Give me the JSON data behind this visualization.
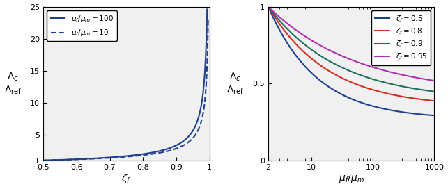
{
  "left_plot": {
    "xlabel": "$\\zeta_f$",
    "xlim": [
      0.5,
      1.0
    ],
    "ylim": [
      1,
      25
    ],
    "yticks": [
      1,
      5,
      10,
      15,
      20,
      25
    ],
    "xticks": [
      0.5,
      0.6,
      0.7,
      0.8,
      0.9,
      1.0
    ],
    "xticklabels": [
      "0.5",
      "0.6",
      "0.7",
      "0.8",
      "0.9",
      "1"
    ],
    "ratio_100": 100,
    "ratio_10": 10,
    "line_color": "#1f3f8f",
    "legend_labels": [
      "$\\mu_f/\\mu_m = 100$",
      "$\\mu_f/\\mu_m = 10$"
    ]
  },
  "right_plot": {
    "xlabel": "$\\mu_f/\\mu_m$",
    "xlim": [
      2,
      1000
    ],
    "ylim": [
      0,
      1
    ],
    "yticks": [
      0,
      0.5,
      1.0
    ],
    "yticklabels": [
      "0",
      "0.5",
      "1"
    ],
    "xticks": [
      2,
      10,
      100,
      1000
    ],
    "xticklabels": [
      "2",
      "10",
      "100",
      "1000"
    ],
    "zeta_values": [
      0.5,
      0.8,
      0.9,
      0.95
    ],
    "zeta_colors": [
      "#1f3f8f",
      "#d03020",
      "#207060",
      "#b030b0"
    ],
    "legend_labels": [
      "$\\zeta_f = 0.5$",
      "$\\zeta_f = 0.8$",
      "$\\zeta_f = 0.9$",
      "$\\zeta_f = 0.95$"
    ],
    "mu_ref": 1.0
  },
  "axes_facecolor": "#f0f0f0",
  "figure_facecolor": "#ffffff"
}
